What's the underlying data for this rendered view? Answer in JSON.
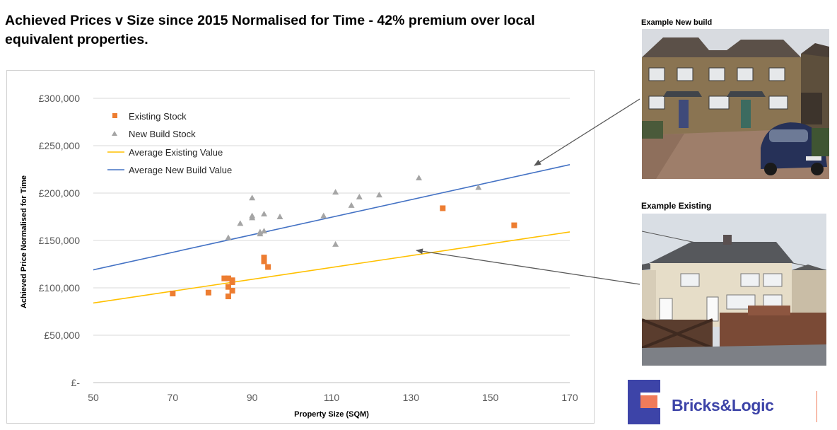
{
  "headline": "Achieved Prices v Size since 2015 Normalised for Time -  42% premium over local equivalent properties.",
  "photos": {
    "newbuild_caption": "Example New build",
    "existing_caption": "Example Existing"
  },
  "logo": {
    "text": "Bricks&Logic"
  },
  "colors": {
    "existing": "#ed7d31",
    "newbuild": "#a5a5a5",
    "avg_existing": "#ffc000",
    "avg_newbuild": "#4472c4",
    "brand": "#3d44a8",
    "brand_accent": "#f07b5a"
  },
  "chart_data": {
    "type": "scatter",
    "title": "",
    "xlabel": "Property Size (SQM)",
    "ylabel": "Achieved Price Normalised for Time",
    "xlim": [
      50,
      170
    ],
    "ylim": [
      0,
      300000
    ],
    "x_ticks": [
      50,
      70,
      90,
      110,
      130,
      150,
      170
    ],
    "y_ticks": [
      0,
      50000,
      100000,
      150000,
      200000,
      250000,
      300000
    ],
    "y_tick_labels": [
      "£-",
      "£50,000",
      "£100,000",
      "£150,000",
      "£200,000",
      "£250,000",
      "£300,000"
    ],
    "grid": "horizontal",
    "legend_position": "top-left",
    "series": [
      {
        "name": "Existing Stock",
        "kind": "scatter",
        "marker": "square",
        "points": [
          [
            70,
            94000
          ],
          [
            79,
            95000
          ],
          [
            83,
            110000
          ],
          [
            84,
            110000
          ],
          [
            84,
            101000
          ],
          [
            84,
            91000
          ],
          [
            85,
            106000
          ],
          [
            85,
            108000
          ],
          [
            85,
            97000
          ],
          [
            93,
            132000
          ],
          [
            93,
            128000
          ],
          [
            94,
            122000
          ],
          [
            138,
            184000
          ],
          [
            156,
            166000
          ]
        ]
      },
      {
        "name": "New Build Stock",
        "kind": "scatter",
        "marker": "triangle",
        "points": [
          [
            84,
            153000
          ],
          [
            87,
            168000
          ],
          [
            90,
            195000
          ],
          [
            90,
            176000
          ],
          [
            90,
            174000
          ],
          [
            92,
            157000
          ],
          [
            92,
            159000
          ],
          [
            93,
            178000
          ],
          [
            93,
            160000
          ],
          [
            97,
            175000
          ],
          [
            108,
            176000
          ],
          [
            111,
            146000
          ],
          [
            111,
            201000
          ],
          [
            115,
            187000
          ],
          [
            117,
            196000
          ],
          [
            122,
            198000
          ],
          [
            132,
            216000
          ],
          [
            147,
            206000
          ]
        ]
      },
      {
        "name": "Average Existing Value",
        "kind": "line",
        "points": [
          [
            50,
            84000
          ],
          [
            170,
            159000
          ]
        ]
      },
      {
        "name": "Average New Build Value",
        "kind": "line",
        "points": [
          [
            50,
            119000
          ],
          [
            170,
            230000
          ]
        ]
      }
    ]
  }
}
